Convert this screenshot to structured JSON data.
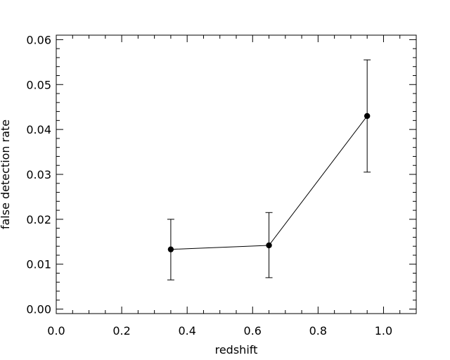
{
  "chart_data": {
    "type": "scatter",
    "title": "",
    "xlabel": "redshift",
    "ylabel": "false detection rate",
    "xlim": [
      0.0,
      1.1
    ],
    "ylim": [
      -0.001,
      0.061
    ],
    "x_ticks": [
      0.0,
      0.2,
      0.4,
      0.6,
      0.8,
      1.0
    ],
    "x_tick_labels": [
      "0.0",
      "0.2",
      "0.4",
      "0.6",
      "0.8",
      "1.0"
    ],
    "x_minor_step": 0.05,
    "y_ticks": [
      0.0,
      0.01,
      0.02,
      0.03,
      0.04,
      0.05,
      0.06
    ],
    "y_tick_labels": [
      "0.00",
      "0.01",
      "0.02",
      "0.03",
      "0.04",
      "0.05",
      "0.06"
    ],
    "y_minor_step": 0.002,
    "grid": false,
    "legend": "none",
    "series": [
      {
        "line": true,
        "points": [
          {
            "x": 0.35,
            "y": 0.0133,
            "y_low": 0.0065,
            "y_high": 0.02
          },
          {
            "x": 0.65,
            "y": 0.0142,
            "y_low": 0.007,
            "y_high": 0.0215
          },
          {
            "x": 0.95,
            "y": 0.043,
            "y_low": 0.0305,
            "y_high": 0.0555
          }
        ]
      }
    ]
  }
}
